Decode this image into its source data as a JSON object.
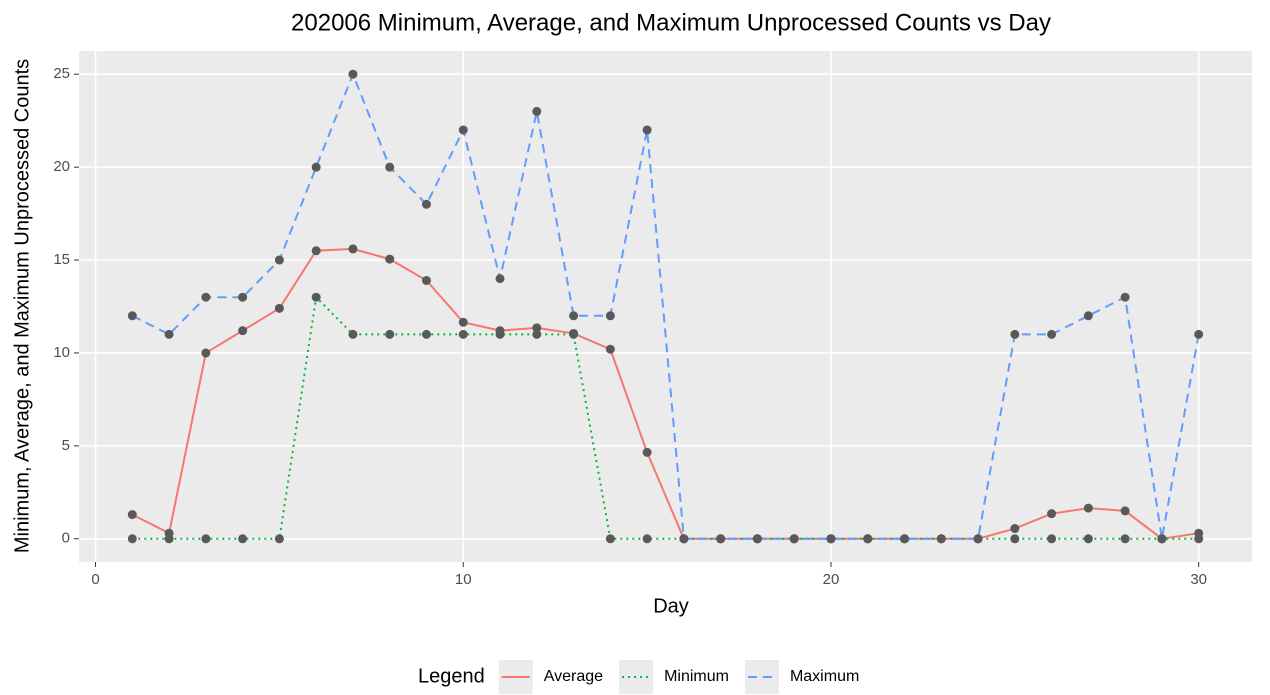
{
  "chart_data": {
    "type": "line",
    "title": "202006 Minimum, Average, and Maximum Unprocessed Counts vs Day",
    "x_label": "Day",
    "y_label": "Minimum, Average, and Maximum Unprocessed Counts",
    "legend_title": "Legend",
    "legend_position": "bottom",
    "grid": true,
    "point_color": "#595959",
    "x": [
      1,
      2,
      3,
      4,
      5,
      6,
      7,
      8,
      9,
      10,
      11,
      12,
      13,
      14,
      15,
      16,
      17,
      18,
      19,
      20,
      21,
      22,
      23,
      24,
      25,
      26,
      27,
      28,
      29,
      30
    ],
    "series": [
      {
        "name": "Average",
        "color": "#F8766D",
        "linestyle": "solid",
        "values": [
          1.3,
          0.3,
          10,
          11.2,
          12.4,
          15.5,
          15.6,
          15.05,
          13.9,
          11.65,
          11.2,
          11.35,
          11.05,
          10.2,
          4.65,
          0,
          0,
          0,
          0,
          0,
          0,
          0,
          0,
          0,
          0.55,
          1.35,
          1.65,
          1.5,
          0,
          0.3
        ]
      },
      {
        "name": "Minimum",
        "color": "#00BA38",
        "linestyle": "dotted",
        "values": [
          0,
          0,
          0,
          0,
          0,
          13,
          11,
          11,
          11,
          11,
          11,
          11,
          11,
          0,
          0,
          0,
          0,
          0,
          0,
          0,
          0,
          0,
          0,
          0,
          0,
          0,
          0,
          0,
          0,
          0
        ]
      },
      {
        "name": "Maximum",
        "color": "#619CFF",
        "linestyle": "dashed",
        "values": [
          12,
          11,
          13,
          13,
          15,
          20,
          25,
          20,
          18,
          22,
          14,
          23,
          12,
          12,
          22,
          0,
          0,
          0,
          0,
          0,
          0,
          0,
          0,
          0,
          11,
          11,
          12,
          13,
          0,
          11
        ]
      }
    ],
    "xlim": [
      -0.45,
      31.45
    ],
    "xticks": [
      0,
      10,
      20,
      30
    ],
    "ylim": [
      -1.25,
      26.25
    ],
    "yticks": [
      0,
      5,
      10,
      15,
      20,
      25
    ]
  }
}
